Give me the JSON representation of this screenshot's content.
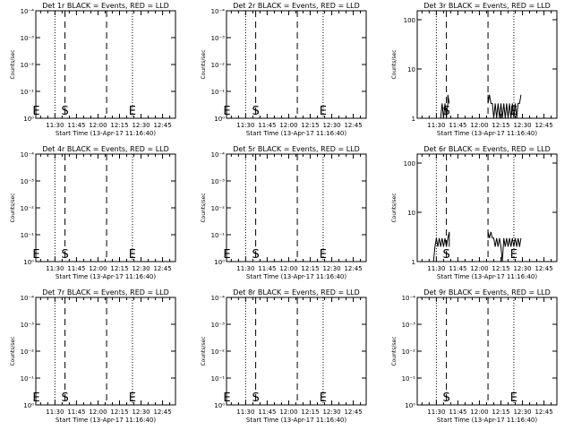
{
  "chart_data": [
    {
      "type": "line",
      "title": "Det 1r BLACK = Events, RED = LLD",
      "xlabel": "Start Time (13-Apr-17 11:16:40)",
      "ylabel": "Counts/sec",
      "yscale": "log",
      "yticks": [
        "10⁰",
        "10⁻¹",
        "10⁻²",
        "10⁻³",
        "10⁻⁴"
      ],
      "xticks": [
        "11:30",
        "11:45",
        "12:00",
        "12:15",
        "12:30",
        "12:45"
      ],
      "markers": [
        {
          "label": "E",
          "x": "11:17"
        },
        {
          "label": "S",
          "x": "11:37"
        },
        {
          "label": "E",
          "x": "12:24"
        }
      ],
      "series": []
    },
    {
      "type": "line",
      "title": "Det 2r BLACK = Events, RED = LLD",
      "xlabel": "Start Time (13-Apr-17 11:16:40)",
      "ylabel": "Counts/sec",
      "yscale": "log",
      "yticks": [
        "10⁰",
        "10⁻¹",
        "10⁻²",
        "10⁻³",
        "10⁻⁴"
      ],
      "xticks": [
        "11:30",
        "11:45",
        "12:00",
        "12:15",
        "12:30",
        "12:45"
      ],
      "markers": [
        {
          "label": "E",
          "x": "11:17"
        },
        {
          "label": "S",
          "x": "11:37"
        },
        {
          "label": "E",
          "x": "12:24"
        }
      ],
      "series": []
    },
    {
      "type": "line",
      "title": "Det 3r BLACK = Events, RED = LLD",
      "xlabel": "Start Time (13-Apr-17 11:16:40)",
      "ylabel": "Counts/sec",
      "yscale": "log",
      "yticks": [
        "1",
        "10",
        "100"
      ],
      "xticks": [
        "11:30",
        "11:45",
        "12:00",
        "12:15",
        "12:30",
        "12:45"
      ],
      "markers": [
        {
          "label": "S",
          "x": "11:37"
        },
        {
          "label": "E",
          "x": "12:24"
        }
      ],
      "series": [
        {
          "values": [
            [
              "11:33",
              1
            ],
            [
              "11:34",
              2
            ],
            [
              "11:35",
              1
            ],
            [
              "11:36",
              2
            ],
            [
              "11:37",
              1
            ],
            [
              "11:38",
              2
            ],
            [
              "11:38",
              3
            ],
            [
              "11:39",
              2
            ],
            [
              "12:06",
              3
            ],
            [
              "12:06",
              2
            ],
            [
              "12:07",
              3
            ],
            [
              "12:08",
              2
            ],
            [
              "12:09",
              2
            ],
            [
              "12:10",
              1
            ],
            [
              "12:11",
              2
            ],
            [
              "12:12",
              1
            ],
            [
              "12:13",
              2
            ],
            [
              "12:14",
              1
            ],
            [
              "12:15",
              2
            ],
            [
              "12:16",
              1
            ],
            [
              "12:17",
              2
            ],
            [
              "12:18",
              1
            ],
            [
              "12:19",
              2
            ],
            [
              "12:20",
              1
            ],
            [
              "12:21",
              2
            ],
            [
              "12:22",
              1
            ],
            [
              "12:23",
              2
            ],
            [
              "12:24",
              1
            ],
            [
              "12:25",
              2
            ],
            [
              "12:26",
              1
            ],
            [
              "12:27",
              2
            ],
            [
              "12:28",
              2
            ],
            [
              "12:29",
              3
            ]
          ]
        }
      ]
    },
    {
      "type": "line",
      "title": "Det 4r BLACK = Events, RED = LLD",
      "xlabel": "Start Time (13-Apr-17 11:16:40)",
      "ylabel": "Counts/sec",
      "yscale": "log",
      "yticks": [
        "10⁰",
        "10⁻¹",
        "10⁻²",
        "10⁻³",
        "10⁻⁴"
      ],
      "xticks": [
        "11:30",
        "11:45",
        "12:00",
        "12:15",
        "12:30",
        "12:45"
      ],
      "markers": [
        {
          "label": "E",
          "x": "11:17"
        },
        {
          "label": "S",
          "x": "11:37"
        },
        {
          "label": "E",
          "x": "12:24"
        }
      ],
      "series": []
    },
    {
      "type": "line",
      "title": "Det 5r BLACK = Events, RED = LLD",
      "xlabel": "Start Time (13-Apr-17 11:16:40)",
      "ylabel": "Counts/sec",
      "yscale": "log",
      "yticks": [
        "10⁰",
        "10⁻¹",
        "10⁻²",
        "10⁻³",
        "10⁻⁴"
      ],
      "xticks": [
        "11:30",
        "11:45",
        "12:00",
        "12:15",
        "12:30",
        "12:45"
      ],
      "markers": [
        {
          "label": "E",
          "x": "11:17"
        },
        {
          "label": "S",
          "x": "11:37"
        },
        {
          "label": "E",
          "x": "12:24"
        }
      ],
      "series": []
    },
    {
      "type": "line",
      "title": "Det 6r BLACK = Events, RED = LLD",
      "xlabel": "Start Time (13-Apr-17 11:16:40)",
      "ylabel": "Counts/sec",
      "yscale": "log",
      "yticks": [
        "1",
        "10",
        "100"
      ],
      "xticks": [
        "11:30",
        "11:45",
        "12:00",
        "12:15",
        "12:30",
        "12:45"
      ],
      "markers": [
        {
          "label": "S",
          "x": "11:37"
        },
        {
          "label": "E",
          "x": "12:24"
        }
      ],
      "series": [
        {
          "values": [
            [
              "11:28",
              1
            ],
            [
              "11:29",
              2
            ],
            [
              "11:30",
              3
            ],
            [
              "11:31",
              2
            ],
            [
              "11:32",
              3
            ],
            [
              "11:33",
              2
            ],
            [
              "11:34",
              3
            ],
            [
              "11:35",
              2
            ],
            [
              "11:36",
              3
            ],
            [
              "11:37",
              2
            ],
            [
              "11:38",
              3
            ],
            [
              "11:39",
              4
            ],
            [
              "11:39",
              2
            ],
            [
              "12:06",
              3
            ],
            [
              "12:06",
              4
            ],
            [
              "12:07",
              3
            ],
            [
              "12:08",
              4
            ],
            [
              "12:09",
              3
            ],
            [
              "12:10",
              3
            ],
            [
              "12:11",
              2
            ],
            [
              "12:12",
              3
            ],
            [
              "12:13",
              2
            ],
            [
              "12:14",
              3
            ],
            [
              "12:15",
              2
            ],
            [
              "12:16",
              1
            ],
            [
              "12:17",
              3
            ],
            [
              "12:18",
              2
            ],
            [
              "12:19",
              3
            ],
            [
              "12:20",
              2
            ],
            [
              "12:21",
              3
            ],
            [
              "12:22",
              2
            ],
            [
              "12:23",
              3
            ],
            [
              "12:24",
              2
            ],
            [
              "12:25",
              3
            ],
            [
              "12:26",
              2
            ],
            [
              "12:27",
              3
            ],
            [
              "12:28",
              2
            ],
            [
              "12:29",
              3
            ]
          ]
        }
      ]
    },
    {
      "type": "line",
      "title": "Det 7r BLACK = Events, RED = LLD",
      "xlabel": "Start Time (13-Apr-17 11:16:40)",
      "ylabel": "Counts/sec",
      "yscale": "log",
      "yticks": [
        "10⁰",
        "10⁻¹",
        "10⁻²",
        "10⁻³",
        "10⁻⁴"
      ],
      "xticks": [
        "11:30",
        "11:45",
        "12:00",
        "12:15",
        "12:30",
        "12:45"
      ],
      "markers": [
        {
          "label": "E",
          "x": "11:17"
        },
        {
          "label": "S",
          "x": "11:37"
        },
        {
          "label": "E",
          "x": "12:24"
        }
      ],
      "series": []
    },
    {
      "type": "line",
      "title": "Det 8r BLACK = Events, RED = LLD",
      "xlabel": "Start Time (13-Apr-17 11:16:40)",
      "ylabel": "Counts/sec",
      "yscale": "log",
      "yticks": [
        "10⁰",
        "10⁻¹",
        "10⁻²",
        "10⁻³",
        "10⁻⁴"
      ],
      "xticks": [
        "11:30",
        "11:45",
        "12:00",
        "12:15",
        "12:30",
        "12:45"
      ],
      "markers": [
        {
          "label": "E",
          "x": "11:17"
        },
        {
          "label": "S",
          "x": "11:37"
        },
        {
          "label": "E",
          "x": "12:24"
        }
      ],
      "series": []
    },
    {
      "type": "line",
      "title": "Det 9r BLACK = Events, RED = LLD",
      "xlabel": "Start Time (13-Apr-17 11:16:40)",
      "ylabel": "Counts/sec",
      "yscale": "log",
      "yticks": [
        "10⁰",
        "10⁻¹",
        "10⁻²",
        "10⁻³",
        "10⁻⁴"
      ],
      "xticks": [
        "11:30",
        "11:45",
        "12:00",
        "12:15",
        "12:30",
        "12:45"
      ],
      "markers": [
        {
          "label": "S",
          "x": "11:37"
        },
        {
          "label": "E",
          "x": "12:24"
        }
      ],
      "series": []
    }
  ]
}
